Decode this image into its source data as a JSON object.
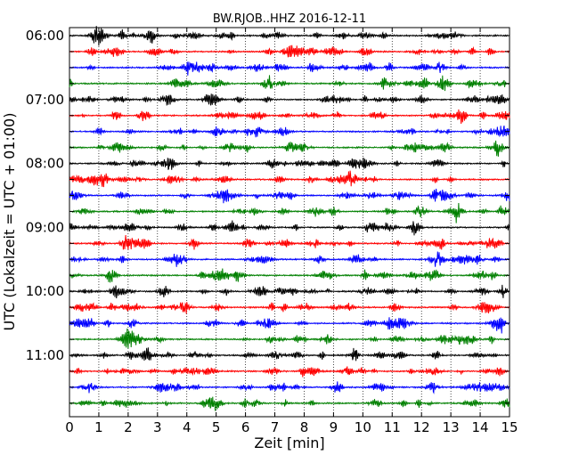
{
  "chart_data": {
    "type": "line",
    "title": "BW.RJOB..HHZ 2016-12-11",
    "xlabel": "Zeit  [min]",
    "ylabel": "UTC (Lokalzeit = UTC + 01:00)",
    "xlim": [
      0,
      15
    ],
    "x_ticks": [
      "0",
      "1",
      "2",
      "3",
      "4",
      "5",
      "6",
      "7",
      "8",
      "9",
      "10",
      "11",
      "12",
      "13",
      "14",
      "15"
    ],
    "y_tick_labels": [
      "06:00",
      "07:00",
      "08:00",
      "09:00",
      "10:00",
      "11:00"
    ],
    "grid": "vertical dotted",
    "trace_interval_min": 15,
    "traces": [
      {
        "start": "06:00",
        "color": "#000000"
      },
      {
        "start": "06:15",
        "color": "#ff0000"
      },
      {
        "start": "06:30",
        "color": "#0000ff"
      },
      {
        "start": "06:45",
        "color": "#008000"
      },
      {
        "start": "07:00",
        "color": "#000000"
      },
      {
        "start": "07:15",
        "color": "#ff0000"
      },
      {
        "start": "07:30",
        "color": "#0000ff"
      },
      {
        "start": "07:45",
        "color": "#008000"
      },
      {
        "start": "08:00",
        "color": "#000000"
      },
      {
        "start": "08:15",
        "color": "#ff0000"
      },
      {
        "start": "08:30",
        "color": "#0000ff"
      },
      {
        "start": "08:45",
        "color": "#008000"
      },
      {
        "start": "09:00",
        "color": "#000000"
      },
      {
        "start": "09:15",
        "color": "#ff0000"
      },
      {
        "start": "09:30",
        "color": "#0000ff"
      },
      {
        "start": "09:45",
        "color": "#008000"
      },
      {
        "start": "10:00",
        "color": "#000000"
      },
      {
        "start": "10:15",
        "color": "#ff0000"
      },
      {
        "start": "10:30",
        "color": "#0000ff"
      },
      {
        "start": "10:45",
        "color": "#008000"
      },
      {
        "start": "11:00",
        "color": "#000000"
      },
      {
        "start": "11:15",
        "color": "#ff0000"
      },
      {
        "start": "11:30",
        "color": "#0000ff"
      },
      {
        "start": "11:45",
        "color": "#008000"
      }
    ]
  }
}
